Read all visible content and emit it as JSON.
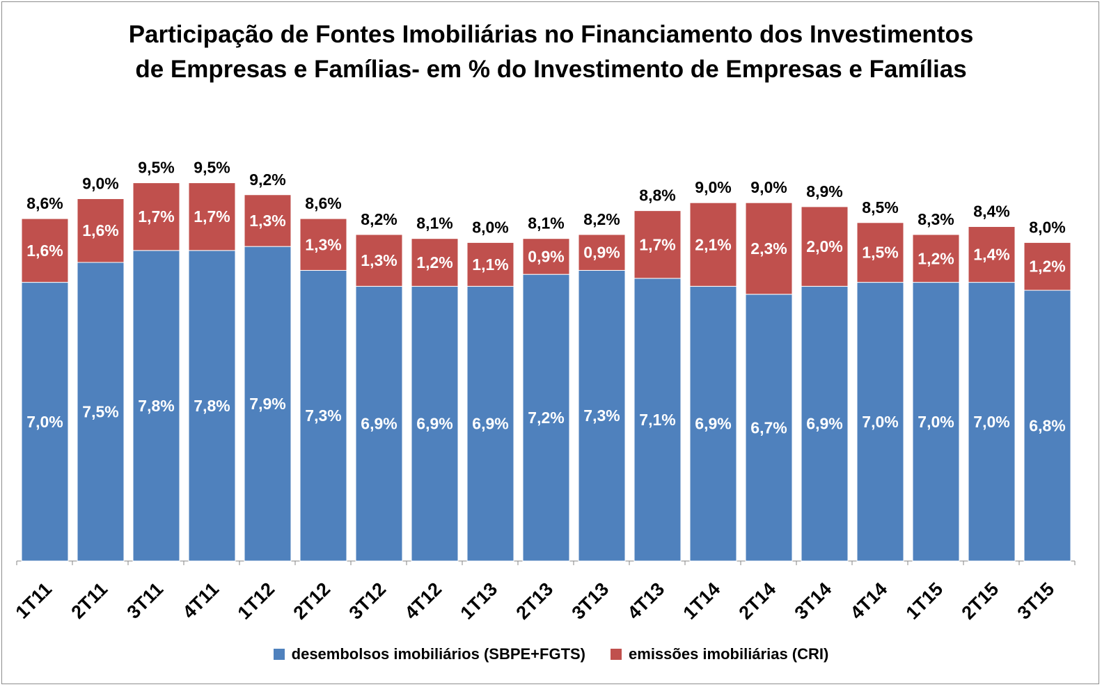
{
  "chart_data": {
    "type": "bar",
    "stacked": true,
    "title_lines": [
      "Participação de Fontes Imobiliárias no Financiamento dos Investimentos",
      "de Empresas e Famílias- em % do Investimento  de Empresas e Famílias"
    ],
    "categories": [
      "1T11",
      "2T11",
      "3T11",
      "4T11",
      "1T12",
      "2T12",
      "3T12",
      "4T12",
      "1T13",
      "2T13",
      "3T13",
      "4T13",
      "1T14",
      "2T14",
      "3T14",
      "4T14",
      "1T15",
      "2T15",
      "3T15"
    ],
    "series": [
      {
        "name": "desembolsos imobiliários (SBPE+FGTS)",
        "color": "#4f81bd",
        "values": [
          7.0,
          7.5,
          7.8,
          7.8,
          7.9,
          7.3,
          6.9,
          6.9,
          6.9,
          7.2,
          7.3,
          7.1,
          6.9,
          6.7,
          6.9,
          7.0,
          7.0,
          7.0,
          6.8
        ],
        "labels": [
          "7,0%",
          "7,5%",
          "7,8%",
          "7,8%",
          "7,9%",
          "7,3%",
          "6,9%",
          "6,9%",
          "6,9%",
          "7,2%",
          "7,3%",
          "7,1%",
          "6,9%",
          "6,7%",
          "6,9%",
          "7,0%",
          "7,0%",
          "7,0%",
          "6,8%"
        ]
      },
      {
        "name": "emissões imobiliárias (CRI)",
        "color": "#c0504d",
        "values": [
          1.6,
          1.6,
          1.7,
          1.7,
          1.3,
          1.3,
          1.3,
          1.2,
          1.1,
          0.9,
          0.9,
          1.7,
          2.1,
          2.3,
          2.0,
          1.5,
          1.2,
          1.4,
          1.2
        ],
        "labels": [
          "1,6%",
          "1,6%",
          "1,7%",
          "1,7%",
          "1,3%",
          "1,3%",
          "1,3%",
          "1,2%",
          "1,1%",
          "0,9%",
          "0,9%",
          "1,7%",
          "2,1%",
          "2,3%",
          "2,0%",
          "1,5%",
          "1,2%",
          "1,4%",
          "1,2%"
        ]
      }
    ],
    "totals": [
      8.6,
      9.0,
      9.5,
      9.5,
      9.2,
      8.6,
      8.2,
      8.1,
      8.0,
      8.1,
      8.2,
      8.8,
      9.0,
      9.0,
      8.9,
      8.5,
      8.3,
      8.4,
      8.0
    ],
    "total_labels": [
      "8,6%",
      "9,0%",
      "9,5%",
      "9,5%",
      "9,2%",
      "8,6%",
      "8,2%",
      "8,1%",
      "8,0%",
      "8,1%",
      "8,2%",
      "8,8%",
      "9,0%",
      "9,0%",
      "8,9%",
      "8,5%",
      "8,3%",
      "8,4%",
      "8,0%"
    ],
    "ylim": [
      0,
      9.5
    ],
    "grid": false,
    "legend_position": "bottom"
  }
}
